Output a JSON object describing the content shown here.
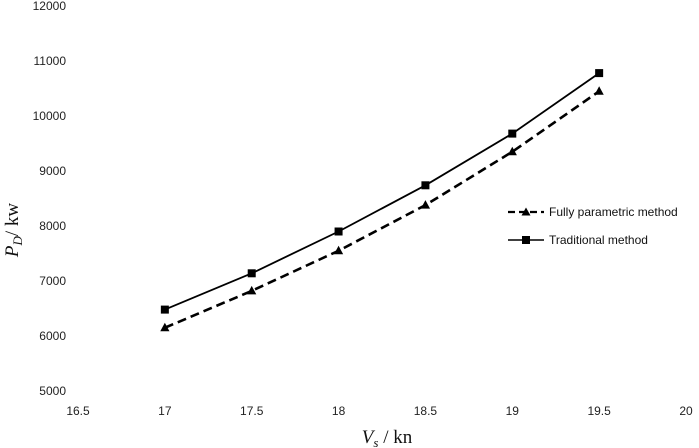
{
  "chart_data": {
    "type": "line",
    "title": "",
    "xlabel": {
      "main": "V",
      "sub": "s",
      "suffix": " / kn"
    },
    "ylabel": {
      "main": "P",
      "sub": "D",
      "suffix": "/ kw"
    },
    "xlim": [
      16.5,
      20
    ],
    "ylim": [
      5000,
      12000
    ],
    "xticks": [
      16.5,
      17,
      17.5,
      18,
      18.5,
      19,
      19.5,
      20
    ],
    "yticks": [
      5000,
      6000,
      7000,
      8000,
      9000,
      10000,
      11000,
      12000
    ],
    "grid": false,
    "legend_position": "right",
    "series": [
      {
        "name": "Fully parametric method",
        "marker": "triangle",
        "line_style": "dashed",
        "color": "#000000",
        "x": [
          17,
          17.5,
          18,
          18.5,
          19,
          19.5
        ],
        "y": [
          6150,
          6820,
          7550,
          8380,
          9350,
          10450
        ]
      },
      {
        "name": "Traditional method",
        "marker": "square",
        "line_style": "solid",
        "color": "#000000",
        "x": [
          17,
          17.5,
          18,
          18.5,
          19,
          19.5
        ],
        "y": [
          6480,
          7140,
          7900,
          8740,
          9680,
          10780
        ]
      }
    ]
  }
}
